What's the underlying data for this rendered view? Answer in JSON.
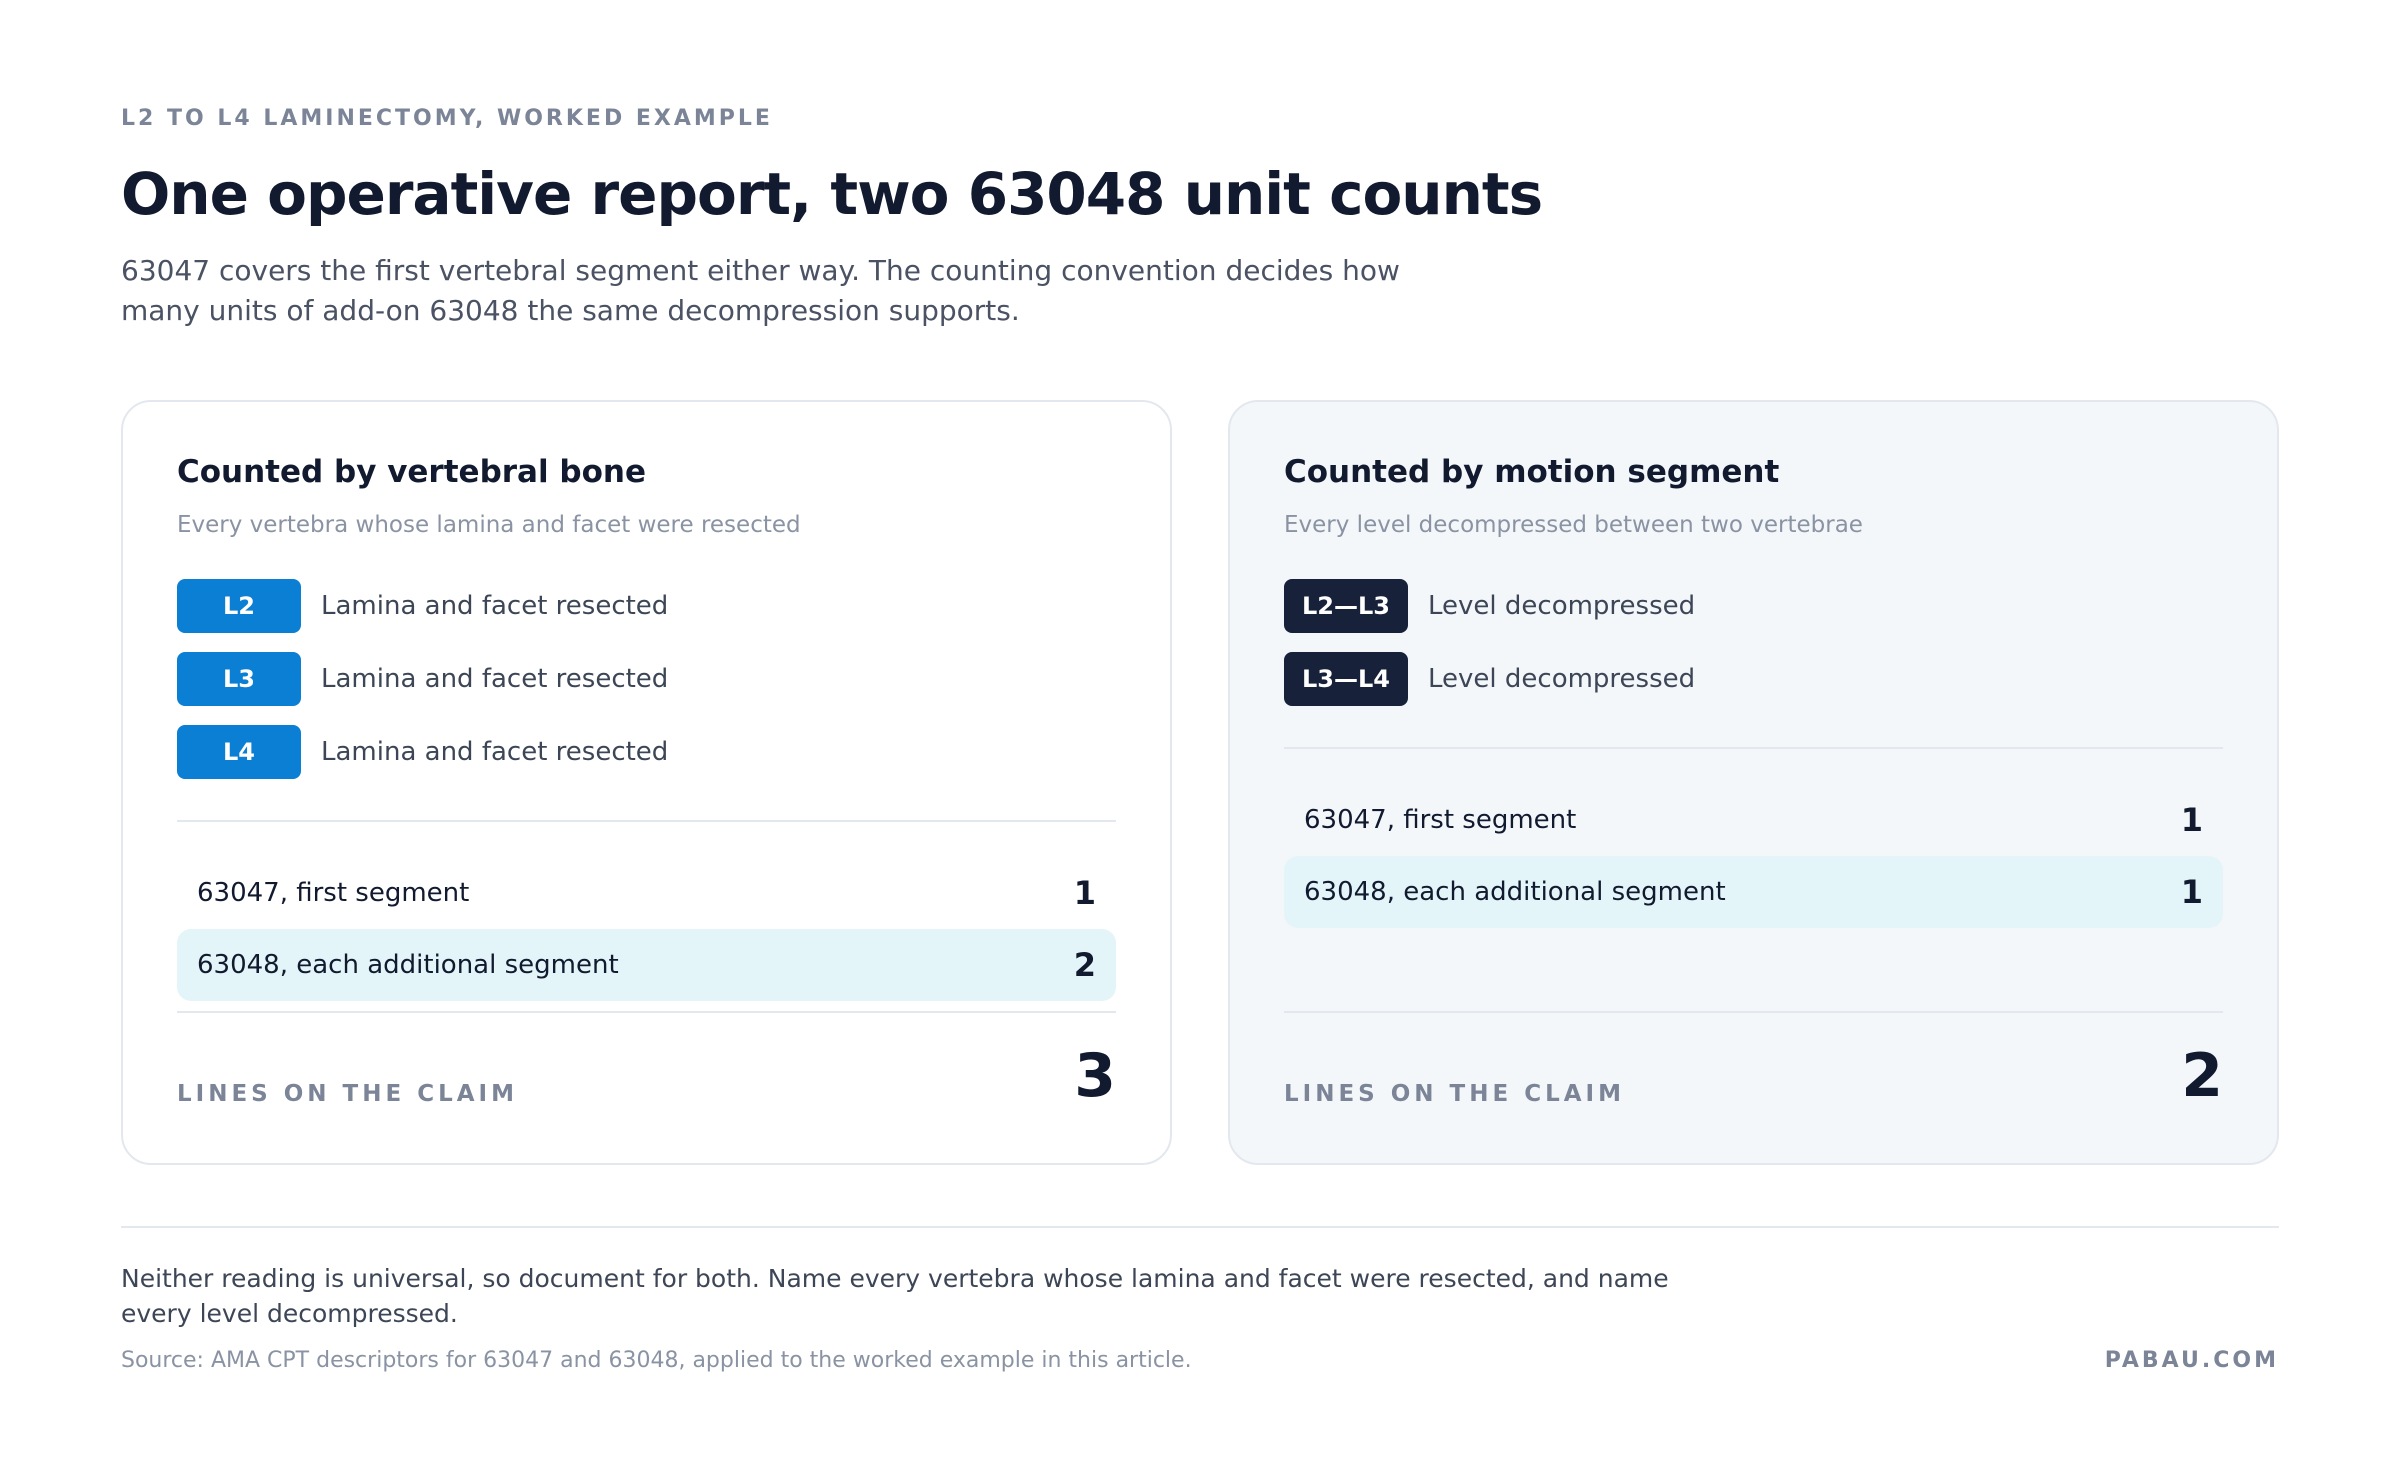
{
  "eyebrow": "L2 TO L4 LAMINECTOMY, WORKED EXAMPLE",
  "title": "One operative report, two 63048 unit counts",
  "subtitle": "63047 covers the first vertebral segment either way. The counting convention decides how many units of add-on 63048 the same decompression supports.",
  "cards": [
    {
      "title": "Counted by vertebral bone",
      "subtitle": "Every vertebra whose lamina and facet were resected",
      "items": [
        {
          "tag": "L2",
          "label": "Lamina and facet resected"
        },
        {
          "tag": "L3",
          "label": "Lamina and facet resected"
        },
        {
          "tag": "L4",
          "label": "Lamina and facet resected"
        }
      ],
      "lines": [
        {
          "code": "63047, first segment",
          "units": "1"
        },
        {
          "code": "63048, each additional segment",
          "units": "2"
        }
      ],
      "total_label": "LINES ON THE CLAIM",
      "total": "3"
    },
    {
      "title": "Counted by motion segment",
      "subtitle": "Every level decompressed between two vertebrae",
      "items": [
        {
          "tag": "L2—L3",
          "label": "Level decompressed"
        },
        {
          "tag": "L3—L4",
          "label": "Level decompressed"
        }
      ],
      "lines": [
        {
          "code": "63047, first segment",
          "units": "1"
        },
        {
          "code": "63048, each additional segment",
          "units": "1"
        }
      ],
      "total_label": "LINES ON THE CLAIM",
      "total": "2"
    }
  ],
  "note": "Neither reading is universal, so document for both. Name every vertebra whose lamina and facet were resected, and name every level decompressed.",
  "source": "Source: AMA CPT descriptors for 63047 and 63048, applied to the worked example in this article.",
  "brand": "PABAU.COM"
}
